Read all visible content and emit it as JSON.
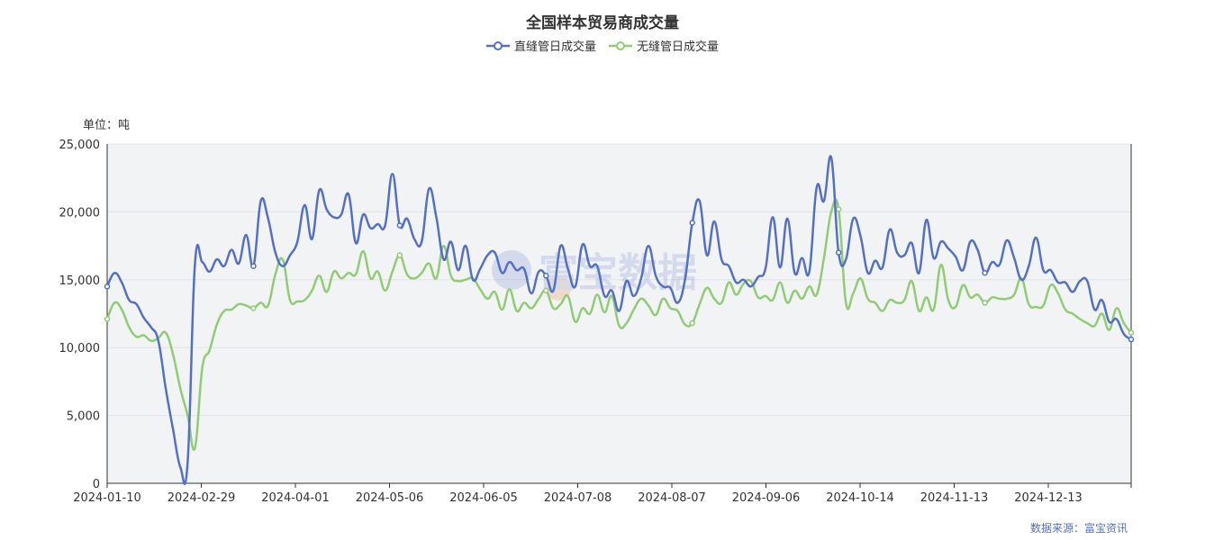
{
  "chart_data": {
    "type": "line",
    "title": "全国样本贸易商成交量",
    "unit_label": "单位：吨",
    "source": "数据来源：富宝资讯",
    "watermark": "富宝数据",
    "x_ticks": [
      "2024-01-10",
      "2024-02-29",
      "2024-04-01",
      "2024-05-06",
      "2024-06-05",
      "2024-07-08",
      "2024-08-07",
      "2024-09-06",
      "2024-10-14",
      "2024-11-13",
      "2024-12-13"
    ],
    "y_ticks": [
      "0",
      "5,000",
      "10,000",
      "15,000",
      "20,000",
      "25,000"
    ],
    "ylim": [
      0,
      25000
    ],
    "grid": true,
    "legend_position": "top-center",
    "series": [
      {
        "name": "直缝管日成交量",
        "color": "#5470c6",
        "values": [
          14500,
          15500,
          14800,
          13500,
          13200,
          12200,
          11500,
          10500,
          7000,
          4000,
          1200,
          1500,
          16200,
          16300,
          15600,
          16500,
          16000,
          17200,
          16200,
          18300,
          16000,
          20800,
          19500,
          17000,
          16000,
          16800,
          17800,
          20500,
          18000,
          21600,
          20200,
          19600,
          19800,
          21300,
          17700,
          19800,
          18800,
          19100,
          19000,
          22800,
          19000,
          19500,
          18000,
          17800,
          21700,
          19600,
          16500,
          17800,
          15700,
          17500,
          15000,
          15800,
          16800,
          17000,
          15500,
          16300,
          15700,
          15800,
          14000,
          15600,
          15300,
          14200,
          17500,
          15800,
          14500,
          17600,
          16000,
          16000,
          13800,
          14200,
          12700,
          14900,
          13800,
          15100,
          17500,
          15300,
          14500,
          14400,
          13300,
          15000,
          19200,
          20800,
          16800,
          19300,
          16500,
          16000,
          14800,
          15000,
          14500,
          15200,
          15800,
          19600,
          15900,
          19500,
          15500,
          16600,
          15600,
          21800,
          20800,
          24000,
          17000,
          16500,
          19500,
          18200,
          15500,
          16400,
          15900,
          18700,
          17000,
          16800,
          17700,
          15500,
          19400,
          16600,
          17800,
          17300,
          16700,
          15700,
          17800,
          17200,
          15500,
          16300,
          16100,
          17900,
          16600,
          15000,
          16000,
          18100,
          15700,
          15700,
          14800,
          14800,
          14100,
          14900,
          14900,
          12800,
          13500,
          11900,
          12100,
          11000,
          10600
        ]
      },
      {
        "name": "无缝管日成交量",
        "color": "#91cc75",
        "values": [
          12100,
          13300,
          12800,
          11500,
          10800,
          10900,
          10500,
          10700,
          11100,
          9500,
          7000,
          5000,
          2600,
          8500,
          9800,
          11700,
          12700,
          12800,
          13200,
          13100,
          12900,
          13300,
          13100,
          15400,
          16500,
          13500,
          13400,
          13500,
          14200,
          15300,
          14100,
          15600,
          15100,
          15500,
          15400,
          17100,
          15100,
          15600,
          14200,
          15600,
          16800,
          15400,
          15100,
          15500,
          16200,
          15100,
          17500,
          15300,
          14900,
          15000,
          15100,
          14300,
          13600,
          14100,
          12800,
          14300,
          12700,
          13300,
          12900,
          13600,
          14200,
          12900,
          13200,
          13800,
          11900,
          12900,
          12500,
          13900,
          12600,
          13800,
          11600,
          11800,
          12800,
          13600,
          13100,
          12400,
          13600,
          12900,
          12700,
          11700,
          11800,
          13200,
          14400,
          13600,
          13300,
          14800,
          13900,
          14700,
          14900,
          13700,
          13800,
          13500,
          14800,
          13300,
          14200,
          13600,
          14500,
          13900,
          16600,
          20000,
          20200,
          13300,
          14000,
          15100,
          13600,
          13300,
          12700,
          13500,
          13300,
          13500,
          14900,
          12700,
          13700,
          12800,
          16100,
          13500,
          13000,
          14600,
          13700,
          13900,
          13300,
          13700,
          13600,
          13600,
          13900,
          15100,
          13200,
          13000,
          13100,
          14600,
          14000,
          12800,
          12500,
          12100,
          11800,
          11600,
          12500,
          11300,
          12900,
          11800,
          11100
        ]
      }
    ]
  }
}
